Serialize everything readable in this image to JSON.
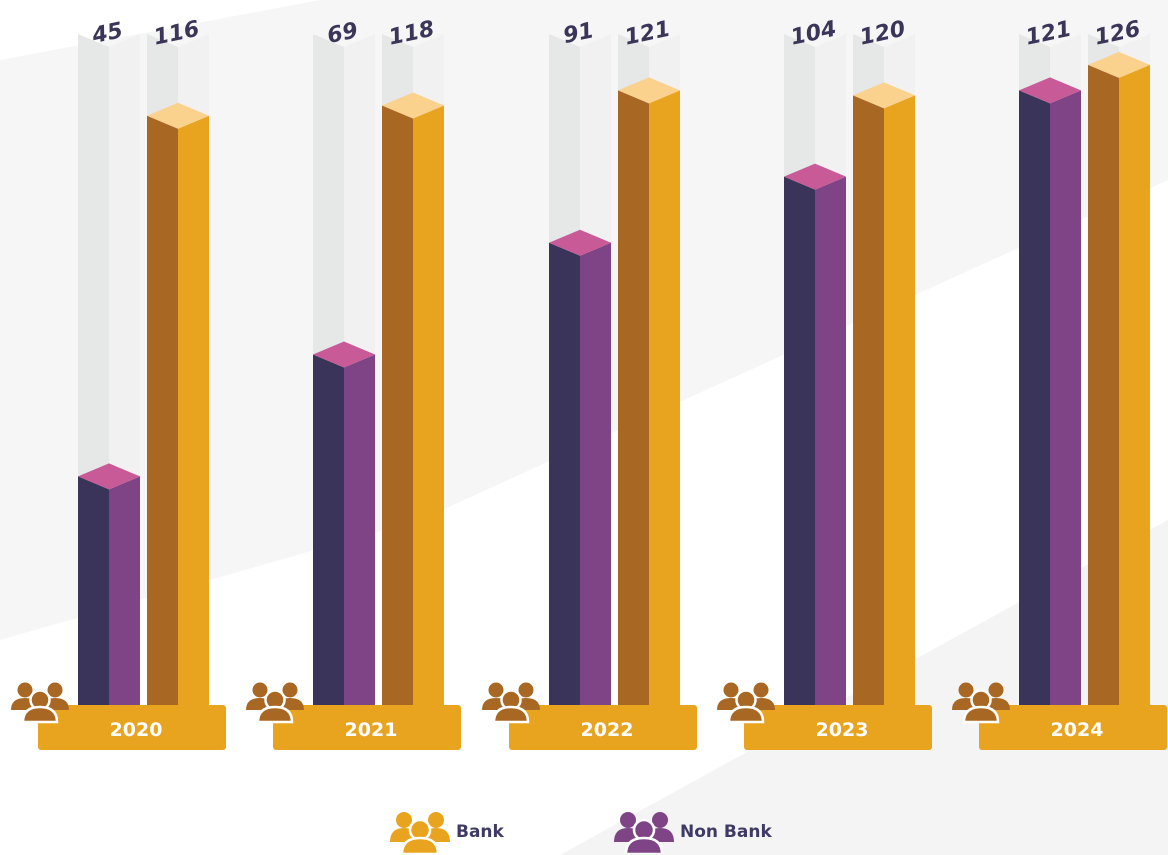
{
  "chart_data": {
    "type": "bar",
    "categories": [
      "2020",
      "2021",
      "2022",
      "2023",
      "2024"
    ],
    "series": [
      {
        "name": "Non Bank",
        "values": [
          45,
          69,
          91,
          104,
          121
        ]
      },
      {
        "name": "Bank",
        "values": [
          116,
          118,
          121,
          120,
          126
        ]
      }
    ],
    "ylim": [
      0,
      130
    ],
    "grid": false,
    "legend_position": "bottom"
  },
  "legend": {
    "bank_label": "Bank",
    "non_bank_label": "Non Bank"
  },
  "colors": {
    "bank_dark": "#A86823",
    "bank_light": "#E8A41F",
    "bank_top": "#FAD18D",
    "nonbank_dark": "#3A345B",
    "nonbank_light": "#7E4485",
    "nonbank_top": "#C85A98",
    "column_bg": "#E6E7E7",
    "column_bg_top": "#F1F1F1",
    "year_tab": "#E8A41F",
    "people_icon": "#A86823"
  },
  "icons": {
    "year_icon": "people-group-icon",
    "legend_icon": "people-group-icon"
  }
}
